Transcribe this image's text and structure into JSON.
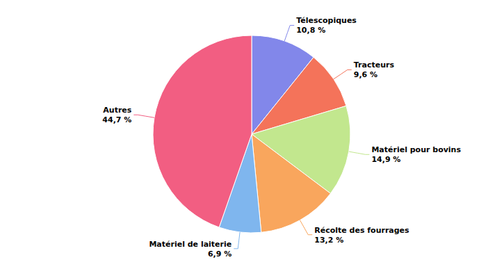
{
  "chart_data": {
    "type": "pie",
    "categories": [
      "Télescopiques",
      "Tracteurs",
      "Matériel pour bovins",
      "Récolte des fourrages",
      "Matériel de laiterie",
      "Autres"
    ],
    "values": [
      10.8,
      9.6,
      14.9,
      13.2,
      6.9,
      44.7
    ],
    "value_labels": [
      "10,8 %",
      "9,6 %",
      "14,9 %",
      "13,2 %",
      "6,9 %",
      "44,7 %"
    ],
    "colors": [
      "#8287ea",
      "#f4735a",
      "#c2e78e",
      "#f9a65d",
      "#7fb6ee",
      "#f25e82"
    ],
    "data_labels": true
  }
}
